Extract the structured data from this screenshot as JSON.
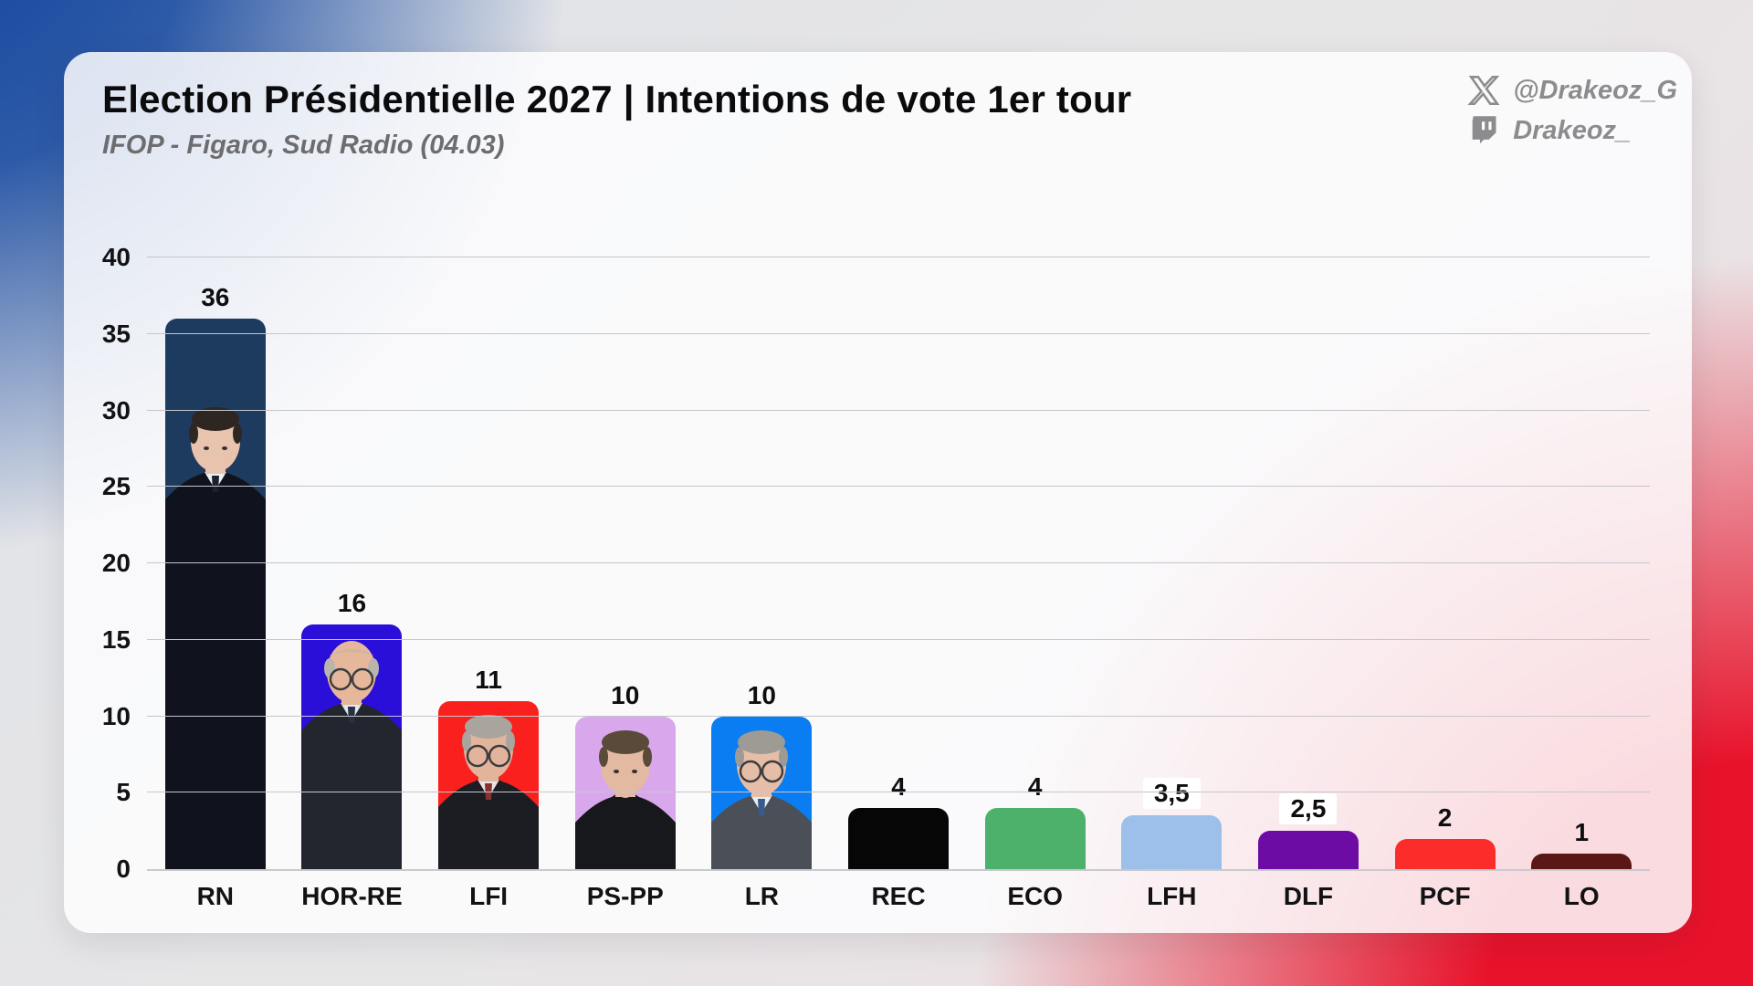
{
  "page": {
    "background_colors": {
      "blue": "#16479e",
      "neutral": "#e7e6e7",
      "red": "#e8132b"
    },
    "card_color": "#fdfdfe"
  },
  "header": {
    "title": "Election Présidentielle 2027 | Intentions de vote 1er tour",
    "subtitle": "IFOP - Figaro, Sud Radio (04.03)"
  },
  "social": {
    "x": {
      "icon": "x-logo-icon",
      "handle": "@Drakeoz_G"
    },
    "twitch": {
      "icon": "twitch-logo-icon",
      "handle": "Drakeoz_"
    },
    "color": "#8c8c8e"
  },
  "chart_data": {
    "type": "bar",
    "title": "Election Présidentielle 2027 | Intentions de vote 1er tour",
    "subtitle": "IFOP - Figaro, Sud Radio (04.03)",
    "xlabel": "",
    "ylabel": "",
    "ylim": [
      0,
      40
    ],
    "yticks": [
      0,
      5,
      10,
      15,
      20,
      25,
      30,
      35,
      40
    ],
    "grid": true,
    "legend": false,
    "categories": [
      "RN",
      "HOR-RE",
      "LFI",
      "PS-PP",
      "LR",
      "REC",
      "ECO",
      "LFH",
      "DLF",
      "PCF",
      "LO"
    ],
    "values": [
      36,
      16,
      11,
      10,
      10,
      4,
      4,
      3.5,
      2.5,
      2,
      1
    ],
    "value_labels": [
      "36",
      "16",
      "11",
      "10",
      "10",
      "4",
      "4",
      "3,5",
      "2,5",
      "2",
      "1"
    ],
    "bar_colors": [
      "#1d3a5f",
      "#2a0fd8",
      "#fa201e",
      "#d9a8ec",
      "#0b7df2",
      "#060606",
      "#4db06b",
      "#9cc0ea",
      "#6d0ca5",
      "#fb2d2b",
      "#5a1715"
    ],
    "label_chips": [
      false,
      false,
      false,
      false,
      false,
      false,
      false,
      true,
      true,
      false,
      false
    ],
    "portraits": [
      {
        "category": "RN",
        "name": "candidate-portrait",
        "top_offset": 94,
        "skin": "#e8c3ae",
        "hair": "#2e2620",
        "hair_style": "full",
        "suit": "#10131d",
        "shirt": "#eef1f4",
        "tie": "#1b2130",
        "glasses": false
      },
      {
        "category": "HOR-RE",
        "name": "candidate-portrait",
        "top_offset": 12,
        "skin": "#e6b79b",
        "hair": "#b9b4ac",
        "hair_style": "bald",
        "suit": "#23262e",
        "shirt": "#dfe7f2",
        "tie": "#2a3040",
        "glasses": true
      },
      {
        "category": "LFI",
        "name": "candidate-portrait",
        "top_offset": 12,
        "skin": "#e2b49c",
        "hair": "#a9a49e",
        "hair_style": "full",
        "suit": "#1c1d22",
        "shirt": "#e8e6e2",
        "tie": "#883333",
        "glasses": true
      },
      {
        "category": "PS-PP",
        "name": "candidate-portrait",
        "top_offset": 12,
        "skin": "#e3b9a2",
        "hair": "#5a4a3a",
        "hair_style": "full",
        "suit": "#17181c",
        "shirt": null,
        "tie": null,
        "glasses": false
      },
      {
        "category": "LR",
        "name": "candidate-portrait",
        "top_offset": 12,
        "skin": "#e6bda6",
        "hair": "#9e9a94",
        "hair_style": "full",
        "suit": "#4a4f58",
        "shirt": "#e9edf2",
        "tie": "#3a5a8c",
        "glasses": true
      }
    ]
  }
}
